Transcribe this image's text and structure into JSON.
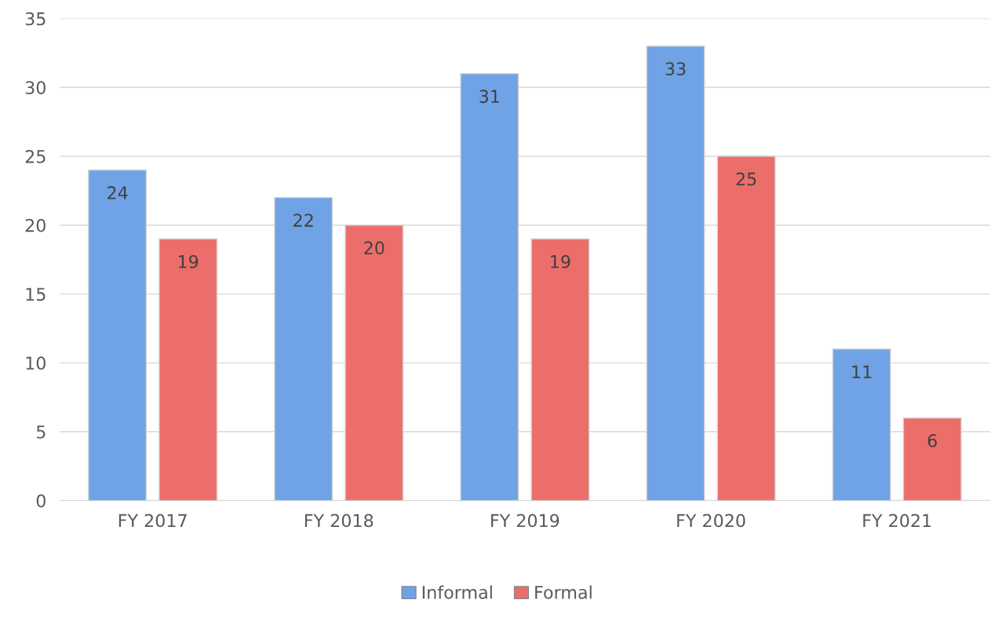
{
  "chart_data": {
    "type": "bar",
    "categories": [
      "FY 2017",
      "FY 2018",
      "FY 2019",
      "FY 2020",
      "FY 2021"
    ],
    "series": [
      {
        "name": "Informal",
        "color": "#6fa3e6",
        "values": [
          24,
          22,
          31,
          33,
          11
        ]
      },
      {
        "name": "Formal",
        "color": "#ec6e6b",
        "values": [
          19,
          20,
          19,
          25,
          6
        ]
      }
    ],
    "ylim": [
      0,
      35
    ],
    "yticks": [
      0,
      5,
      10,
      15,
      20,
      25,
      30,
      35
    ],
    "grid": "y",
    "legend": "bottom",
    "data_labels": true
  }
}
